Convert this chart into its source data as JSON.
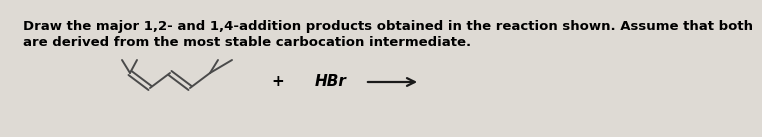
{
  "background_color": "#dedad4",
  "text_line1": "Draw the major 1,2- and 1,4-addition products obtained in the reaction shown. Assume that both",
  "text_line2": "are derived from the most stable carbocation intermediate.",
  "text_fontsize": 9.5,
  "reagent_text": "HBr",
  "reagent_fontsize": 11,
  "plus_text": "+",
  "molecule_color": "#4a4a4a",
  "arrow_color": "#1a1a1a",
  "molecule_linewidth": 1.4
}
